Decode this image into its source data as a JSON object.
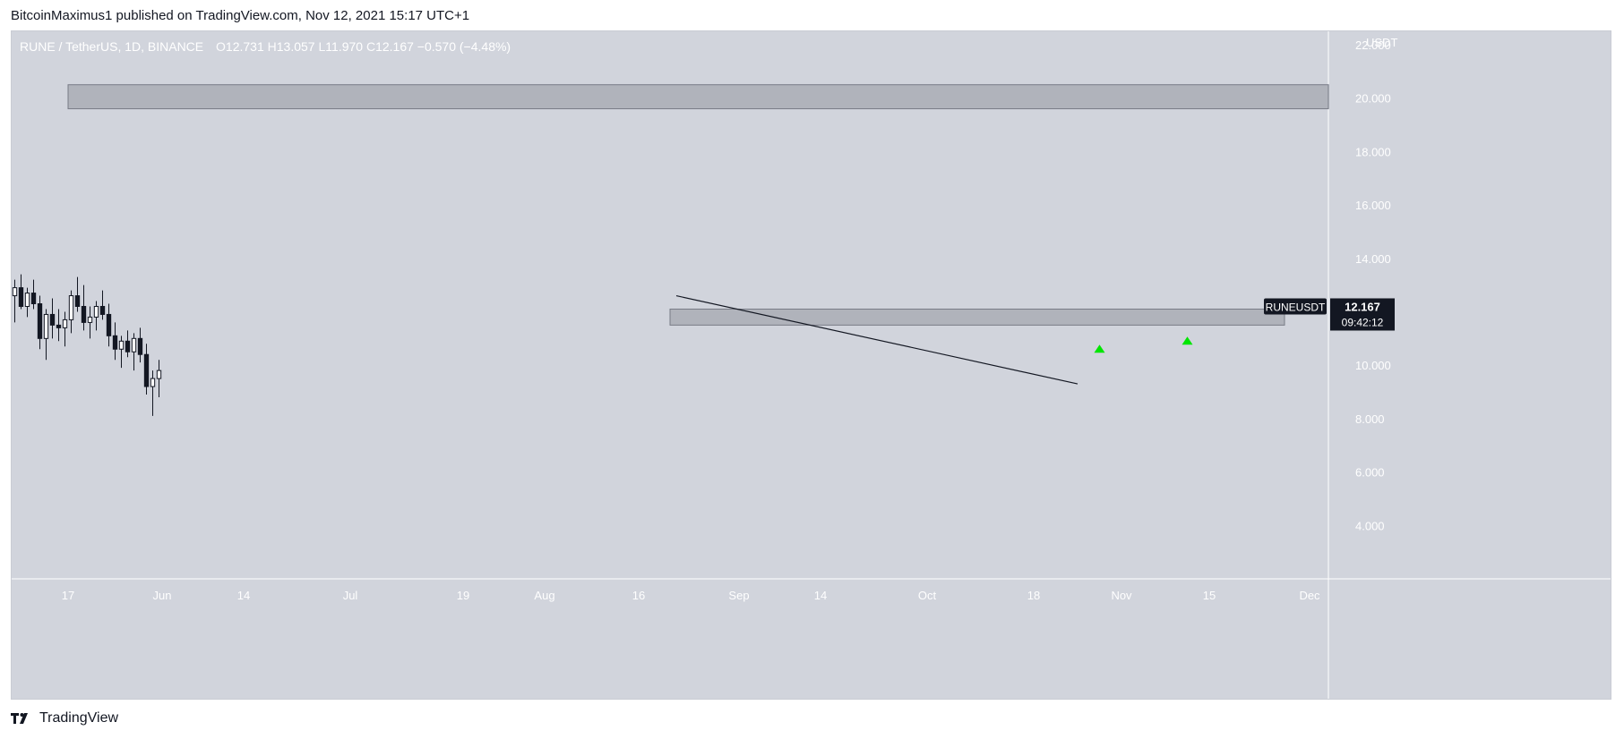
{
  "publish": {
    "text": "BitcoinMaximus1 published on TradingView.com, Nov 12, 2021 15:17 UTC+1"
  },
  "legend": {
    "symbol": "RUNE / TetherUS, 1D, BINANCE",
    "o_key": "O",
    "o_val": "12.731",
    "h_key": "H",
    "h_val": "13.057",
    "l_key": "L",
    "l_val": "11.970",
    "c_key": "C",
    "c_val": "12.167",
    "change": "−0.570 (−4.48%)"
  },
  "price_label": {
    "ticker": "RUNEUSDT",
    "price": "12.167",
    "countdown": "09:42:12"
  },
  "footer": {
    "brand": "TradingView"
  },
  "colors": {
    "background": "#d1d4dc",
    "candle_up": "#ffffff",
    "candle_down": "#131722",
    "zone": "#9598a1",
    "marker": "#00e600",
    "label_bg": "#131722"
  },
  "chart_data": {
    "type": "candlestick",
    "title": "",
    "xlabel": "",
    "ylabel": "USDT",
    "y_ticks": [
      "22.000",
      "20.000",
      "18.000",
      "16.000",
      "14.000",
      "12.000",
      "10.000",
      "8.000",
      "6.000",
      "4.000"
    ],
    "y_tick_values": [
      22,
      20,
      18,
      16,
      14,
      12,
      10,
      8,
      6,
      4
    ],
    "ylim": [
      2.0,
      22.5
    ],
    "x_ticks": [
      "17",
      "Jun",
      "14",
      "Jul",
      "19",
      "Aug",
      "16",
      "Sep",
      "14",
      "Oct",
      "18",
      "Nov",
      "15",
      "Dec"
    ],
    "x_tick_dates": [
      "2021-05-17",
      "2021-06-01",
      "2021-06-14",
      "2021-07-01",
      "2021-07-19",
      "2021-08-01",
      "2021-08-16",
      "2021-09-01",
      "2021-09-14",
      "2021-10-01",
      "2021-10-18",
      "2021-11-01",
      "2021-11-15",
      "2021-12-01"
    ],
    "xlim": [
      "2021-05-08",
      "2021-12-04"
    ],
    "grid": false,
    "zones": [
      {
        "y_low": 19.6,
        "y_high": 20.5,
        "x_start": "2021-05-17",
        "x_end": "2021-12-04"
      },
      {
        "y_low": 11.5,
        "y_high": 12.1,
        "x_start": "2021-08-21",
        "x_end": "2021-11-27"
      }
    ],
    "trendline": {
      "x1": "2021-08-22",
      "y1": 12.6,
      "x2": "2021-10-25",
      "y2": 9.3
    },
    "markers": [
      {
        "date": "2021-10-28",
        "y": 10.6,
        "shape": "triangle-up"
      },
      {
        "date": "2021-11-11",
        "y": 10.9,
        "shape": "triangle-up"
      }
    ],
    "last_price": 12.167,
    "candles": [
      [
        "2021-05-08",
        12.6,
        13.2,
        11.6,
        12.9
      ],
      [
        "2021-05-09",
        12.9,
        13.4,
        12.1,
        12.2
      ],
      [
        "2021-05-10",
        12.2,
        12.9,
        11.8,
        12.7
      ],
      [
        "2021-05-11",
        12.7,
        13.2,
        12.1,
        12.3
      ],
      [
        "2021-05-12",
        12.3,
        12.6,
        10.6,
        11.0
      ],
      [
        "2021-05-13",
        11.0,
        12.1,
        10.2,
        11.9
      ],
      [
        "2021-05-14",
        11.9,
        12.5,
        11.0,
        11.5
      ],
      [
        "2021-05-15",
        11.5,
        12.1,
        10.9,
        11.4
      ],
      [
        "2021-05-16",
        11.4,
        12.0,
        10.7,
        11.7
      ],
      [
        "2021-05-17",
        11.7,
        12.8,
        11.2,
        12.6
      ],
      [
        "2021-05-18",
        12.6,
        13.3,
        12.0,
        12.2
      ],
      [
        "2021-05-19",
        12.2,
        13.0,
        11.3,
        11.6
      ],
      [
        "2021-05-20",
        11.6,
        12.2,
        11.0,
        11.8
      ],
      [
        "2021-05-21",
        11.8,
        12.4,
        11.3,
        12.2
      ],
      [
        "2021-05-22",
        12.2,
        12.8,
        11.7,
        11.9
      ],
      [
        "2021-05-23",
        11.9,
        12.3,
        10.7,
        11.1
      ],
      [
        "2021-05-24",
        11.1,
        11.6,
        10.2,
        10.6
      ],
      [
        "2021-05-25",
        10.6,
        11.1,
        9.9,
        10.9
      ],
      [
        "2021-05-26",
        10.9,
        11.3,
        10.3,
        10.5
      ],
      [
        "2021-05-27",
        10.5,
        11.2,
        9.8,
        11.0
      ],
      [
        "2021-05-28",
        11.0,
        11.4,
        10.1,
        10.4
      ],
      [
        "2021-05-29",
        10.4,
        10.8,
        8.9,
        9.2
      ],
      [
        "2021-05-30",
        9.2,
        9.8,
        8.1,
        9.5
      ],
      [
        "2021-05-31",
        9.5,
        10.2,
        8.8,
        9.8
      ]
    ]
  }
}
